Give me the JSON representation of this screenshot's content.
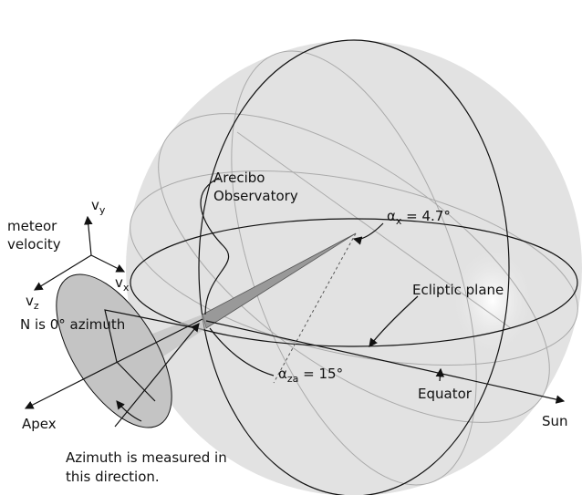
{
  "labels": {
    "arecibo": [
      "Arecibo",
      "Observatory"
    ],
    "meteor_velocity": [
      "meteor",
      "velocity"
    ],
    "vy": {
      "symbol": "v",
      "subscript": "y"
    },
    "vz": {
      "symbol": "v",
      "subscript": "z"
    },
    "vx": {
      "symbol": "v",
      "subscript": "x"
    },
    "north": "N is 0° azimuth",
    "alpha_x": {
      "symbol": "α",
      "subscript": "x",
      "text": " = 4.7°"
    },
    "ecliptic": "Ecliptic plane",
    "alpha_za": {
      "symbol": "α",
      "subscript": "za",
      "text": " = 15°"
    },
    "equator": "Equator",
    "sun": "Sun",
    "apex": "Apex",
    "azimuth": [
      "Azimuth is measured in",
      "this direction."
    ]
  }
}
